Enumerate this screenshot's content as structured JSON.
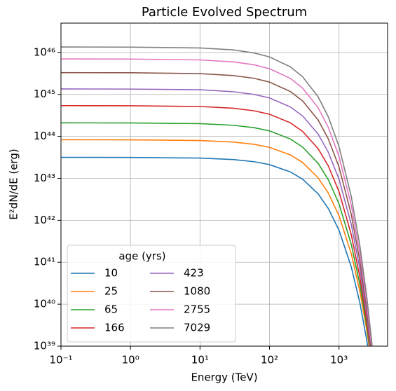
{
  "chart_data": {
    "type": "line",
    "title": "Particle Evolved Spectrum",
    "x_label": "Energy (TeV)",
    "y_label": "E²dN/dE (erg)",
    "log_x": true,
    "log_y": true,
    "grid": true,
    "legend": {
      "title": "age (yrs)",
      "corner": "lower left",
      "columns": 2
    },
    "xlim": [
      0.1,
      5000
    ],
    "ylim": [
      1e+39,
      5e+46
    ],
    "xticks": [
      {
        "value": 0.1,
        "label": "10⁻¹"
      },
      {
        "value": 1,
        "label": "10⁰"
      },
      {
        "value": 10,
        "label": "10¹"
      },
      {
        "value": 100,
        "label": "10²"
      },
      {
        "value": 1000,
        "label": "10³"
      }
    ],
    "yticks": [
      {
        "value": 1e+39,
        "label": "10³⁹"
      },
      {
        "value": 1e+40,
        "label": "10⁴⁰"
      },
      {
        "value": 1e+41,
        "label": "10⁴¹"
      },
      {
        "value": 1e+42,
        "label": "10⁴²"
      },
      {
        "value": 1e+43,
        "label": "10⁴³"
      },
      {
        "value": 1e+44,
        "label": "10⁴⁴"
      },
      {
        "value": 1e+45,
        "label": "10⁴⁵"
      },
      {
        "value": 1e+46,
        "label": "10⁴⁶"
      }
    ],
    "x": [
      0.1,
      1,
      10,
      30,
      60,
      100,
      200,
      300,
      500,
      700,
      1000,
      1500,
      2000,
      2500,
      3000
    ],
    "series": [
      {
        "name": "10",
        "color": "#1f77b4",
        "values": [
          3.16e+43,
          3.15e+43,
          3.04e+43,
          2.8e+43,
          2.49e+43,
          2.12e+43,
          1.42e+43,
          9.5e+42,
          4.28e+42,
          1.92e+42,
          5.79e+41,
          7.8e+40,
          1.06e+40,
          1.43e+39,
          1.94e+38
        ]
      },
      {
        "name": "25",
        "color": "#ff7f0e",
        "values": [
          8.3e+43,
          8.27e+43,
          7.96e+43,
          7.32e+43,
          6.46e+43,
          5.47e+43,
          3.61e+43,
          2.38e+43,
          1.03e+43,
          4.49e+42,
          1.29e+42,
          1.6e+41,
          1.99e+40,
          2.48e+39,
          3.1e+38
        ]
      },
      {
        "name": "65",
        "color": "#2ca02c",
        "values": [
          2.1e+44,
          2.09e+44,
          2.01e+44,
          1.84e+44,
          1.61e+44,
          1.35e+44,
          8.63e+43,
          5.54e+43,
          2.28e+43,
          9.36e+42,
          2.47e+42,
          2.67e+41,
          2.89e+40,
          3.13e+39,
          3.4e+38
        ]
      },
      {
        "name": "166",
        "color": "#d62728",
        "values": [
          5.4e+44,
          5.37e+44,
          5.15e+44,
          4.69e+44,
          4.07e+44,
          3.37e+44,
          2.1e+44,
          1.31e+44,
          5.11e+43,
          1.99e+43,
          4.83e+42,
          4.56e+41,
          4.32e+40,
          4.08e+39,
          3.86e+38
        ]
      },
      {
        "name": "423",
        "color": "#9467bd",
        "values": [
          1.35e+45,
          1.34e+45,
          1.29e+45,
          1.16e+45,
          1e+45,
          8.23e+44,
          5.02e+44,
          3.06e+44,
          1.14e+44,
          4.22e+43,
          9.56e+42,
          8.03e+41,
          6.78e+40,
          5.7e+39,
          4.8e+38
        ]
      },
      {
        "name": "1080",
        "color": "#8c564b",
        "values": [
          3.3e+45,
          3.28e+45,
          3.13e+45,
          2.82e+45,
          2.42e+45,
          1.97e+45,
          1.17e+45,
          6.98e+44,
          2.47e+44,
          8.78e+43,
          1.86e+43,
          1.39e+42,
          1.04e+41,
          7.8e+39,
          5.9e+38
        ]
      },
      {
        "name": "2755",
        "color": "#e377c2",
        "values": [
          7e+45,
          6.96e+45,
          6.64e+45,
          5.96e+45,
          5.08e+45,
          4.1e+45,
          2.4e+45,
          1.41e+45,
          4.83e+44,
          1.66e+44,
          3.33e+43,
          2.3e+42,
          1.58e+41,
          1.09e+40,
          7.5e+38
        ]
      },
      {
        "name": "7029",
        "color": "#7f7f7f",
        "values": [
          1.35e+46,
          1.34e+46,
          1.28e+46,
          1.15e+46,
          9.73e+45,
          7.82e+45,
          4.53e+45,
          2.62e+45,
          8.79e+44,
          2.95e+44,
          5.72e+43,
          3.72e+42,
          2.42e+41,
          1.58e+40,
          1.03e+39
        ]
      }
    ]
  }
}
